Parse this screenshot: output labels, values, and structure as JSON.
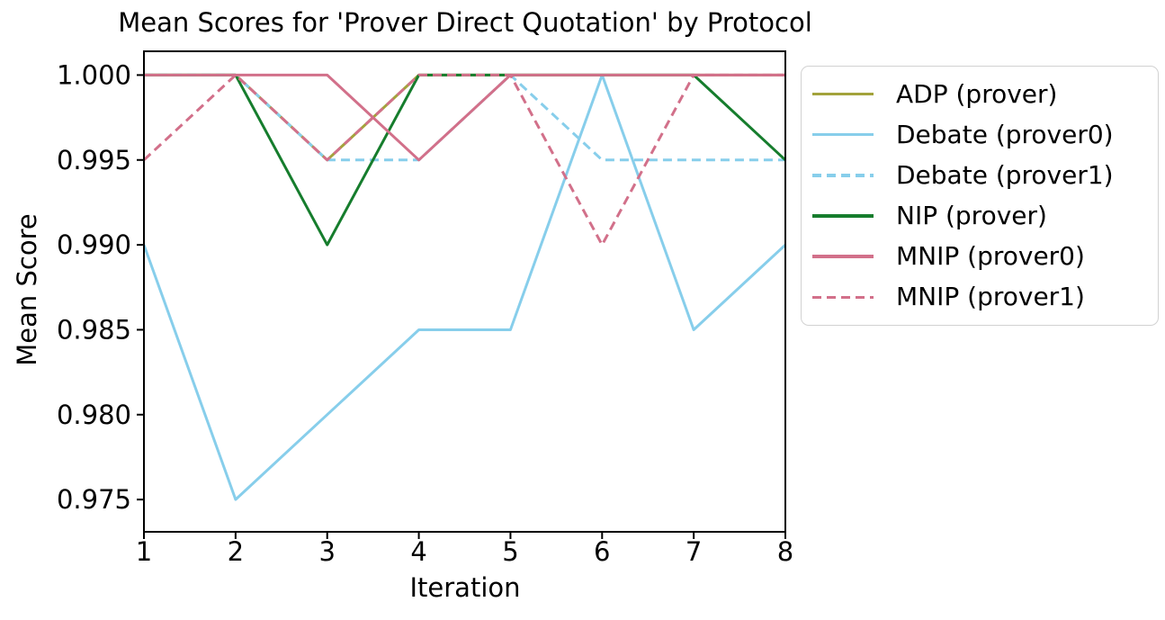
{
  "chart_data": {
    "type": "line",
    "title": "Mean Scores for 'Prover Direct Quotation' by Protocol",
    "xlabel": "Iteration",
    "ylabel": "Mean Score",
    "x": [
      1,
      2,
      3,
      4,
      5,
      6,
      7,
      8
    ],
    "xtick_labels": [
      "1",
      "2",
      "3",
      "4",
      "5",
      "6",
      "7",
      "8"
    ],
    "ytick_values": [
      1.0,
      0.995,
      0.99,
      0.985,
      0.98,
      0.975
    ],
    "ytick_labels": [
      "1.000",
      "0.995",
      "0.990",
      "0.985",
      "0.980",
      "0.975"
    ],
    "xlim": [
      1,
      8
    ],
    "ylim": [
      0.9731,
      1.0014
    ],
    "grid": false,
    "legend_position": "outside upper right",
    "axis_color": "#000000",
    "legend_border_color": "#d2d2d2",
    "series": [
      {
        "name": "ADP (prover)",
        "color": "#a3a33b",
        "dash": "solid",
        "values": [
          1.0,
          1.0,
          0.995,
          1.0,
          1.0,
          1.0,
          1.0,
          1.0
        ]
      },
      {
        "name": "Debate (prover0)",
        "color": "#87ceeb",
        "dash": "solid",
        "values": [
          0.99,
          0.975,
          0.98,
          0.985,
          0.985,
          1.0,
          0.985,
          0.99
        ]
      },
      {
        "name": "Debate (prover1)",
        "color": "#87ceeb",
        "dash": "dashed",
        "values": [
          1.0,
          1.0,
          0.995,
          0.995,
          1.0,
          0.995,
          0.995,
          0.995
        ]
      },
      {
        "name": "NIP (prover)",
        "color": "#167d2d",
        "dash": "solid",
        "values": [
          1.0,
          1.0,
          0.99,
          1.0,
          1.0,
          1.0,
          1.0,
          0.995
        ]
      },
      {
        "name": "MNIP (prover0)",
        "color": "#d2708a",
        "dash": "solid",
        "values": [
          1.0,
          1.0,
          1.0,
          0.995,
          1.0,
          1.0,
          1.0,
          1.0
        ]
      },
      {
        "name": "MNIP (prover1)",
        "color": "#d2708a",
        "dash": "dashed",
        "values": [
          0.995,
          1.0,
          0.995,
          1.0,
          1.0,
          0.99,
          1.0,
          1.0
        ]
      }
    ]
  }
}
